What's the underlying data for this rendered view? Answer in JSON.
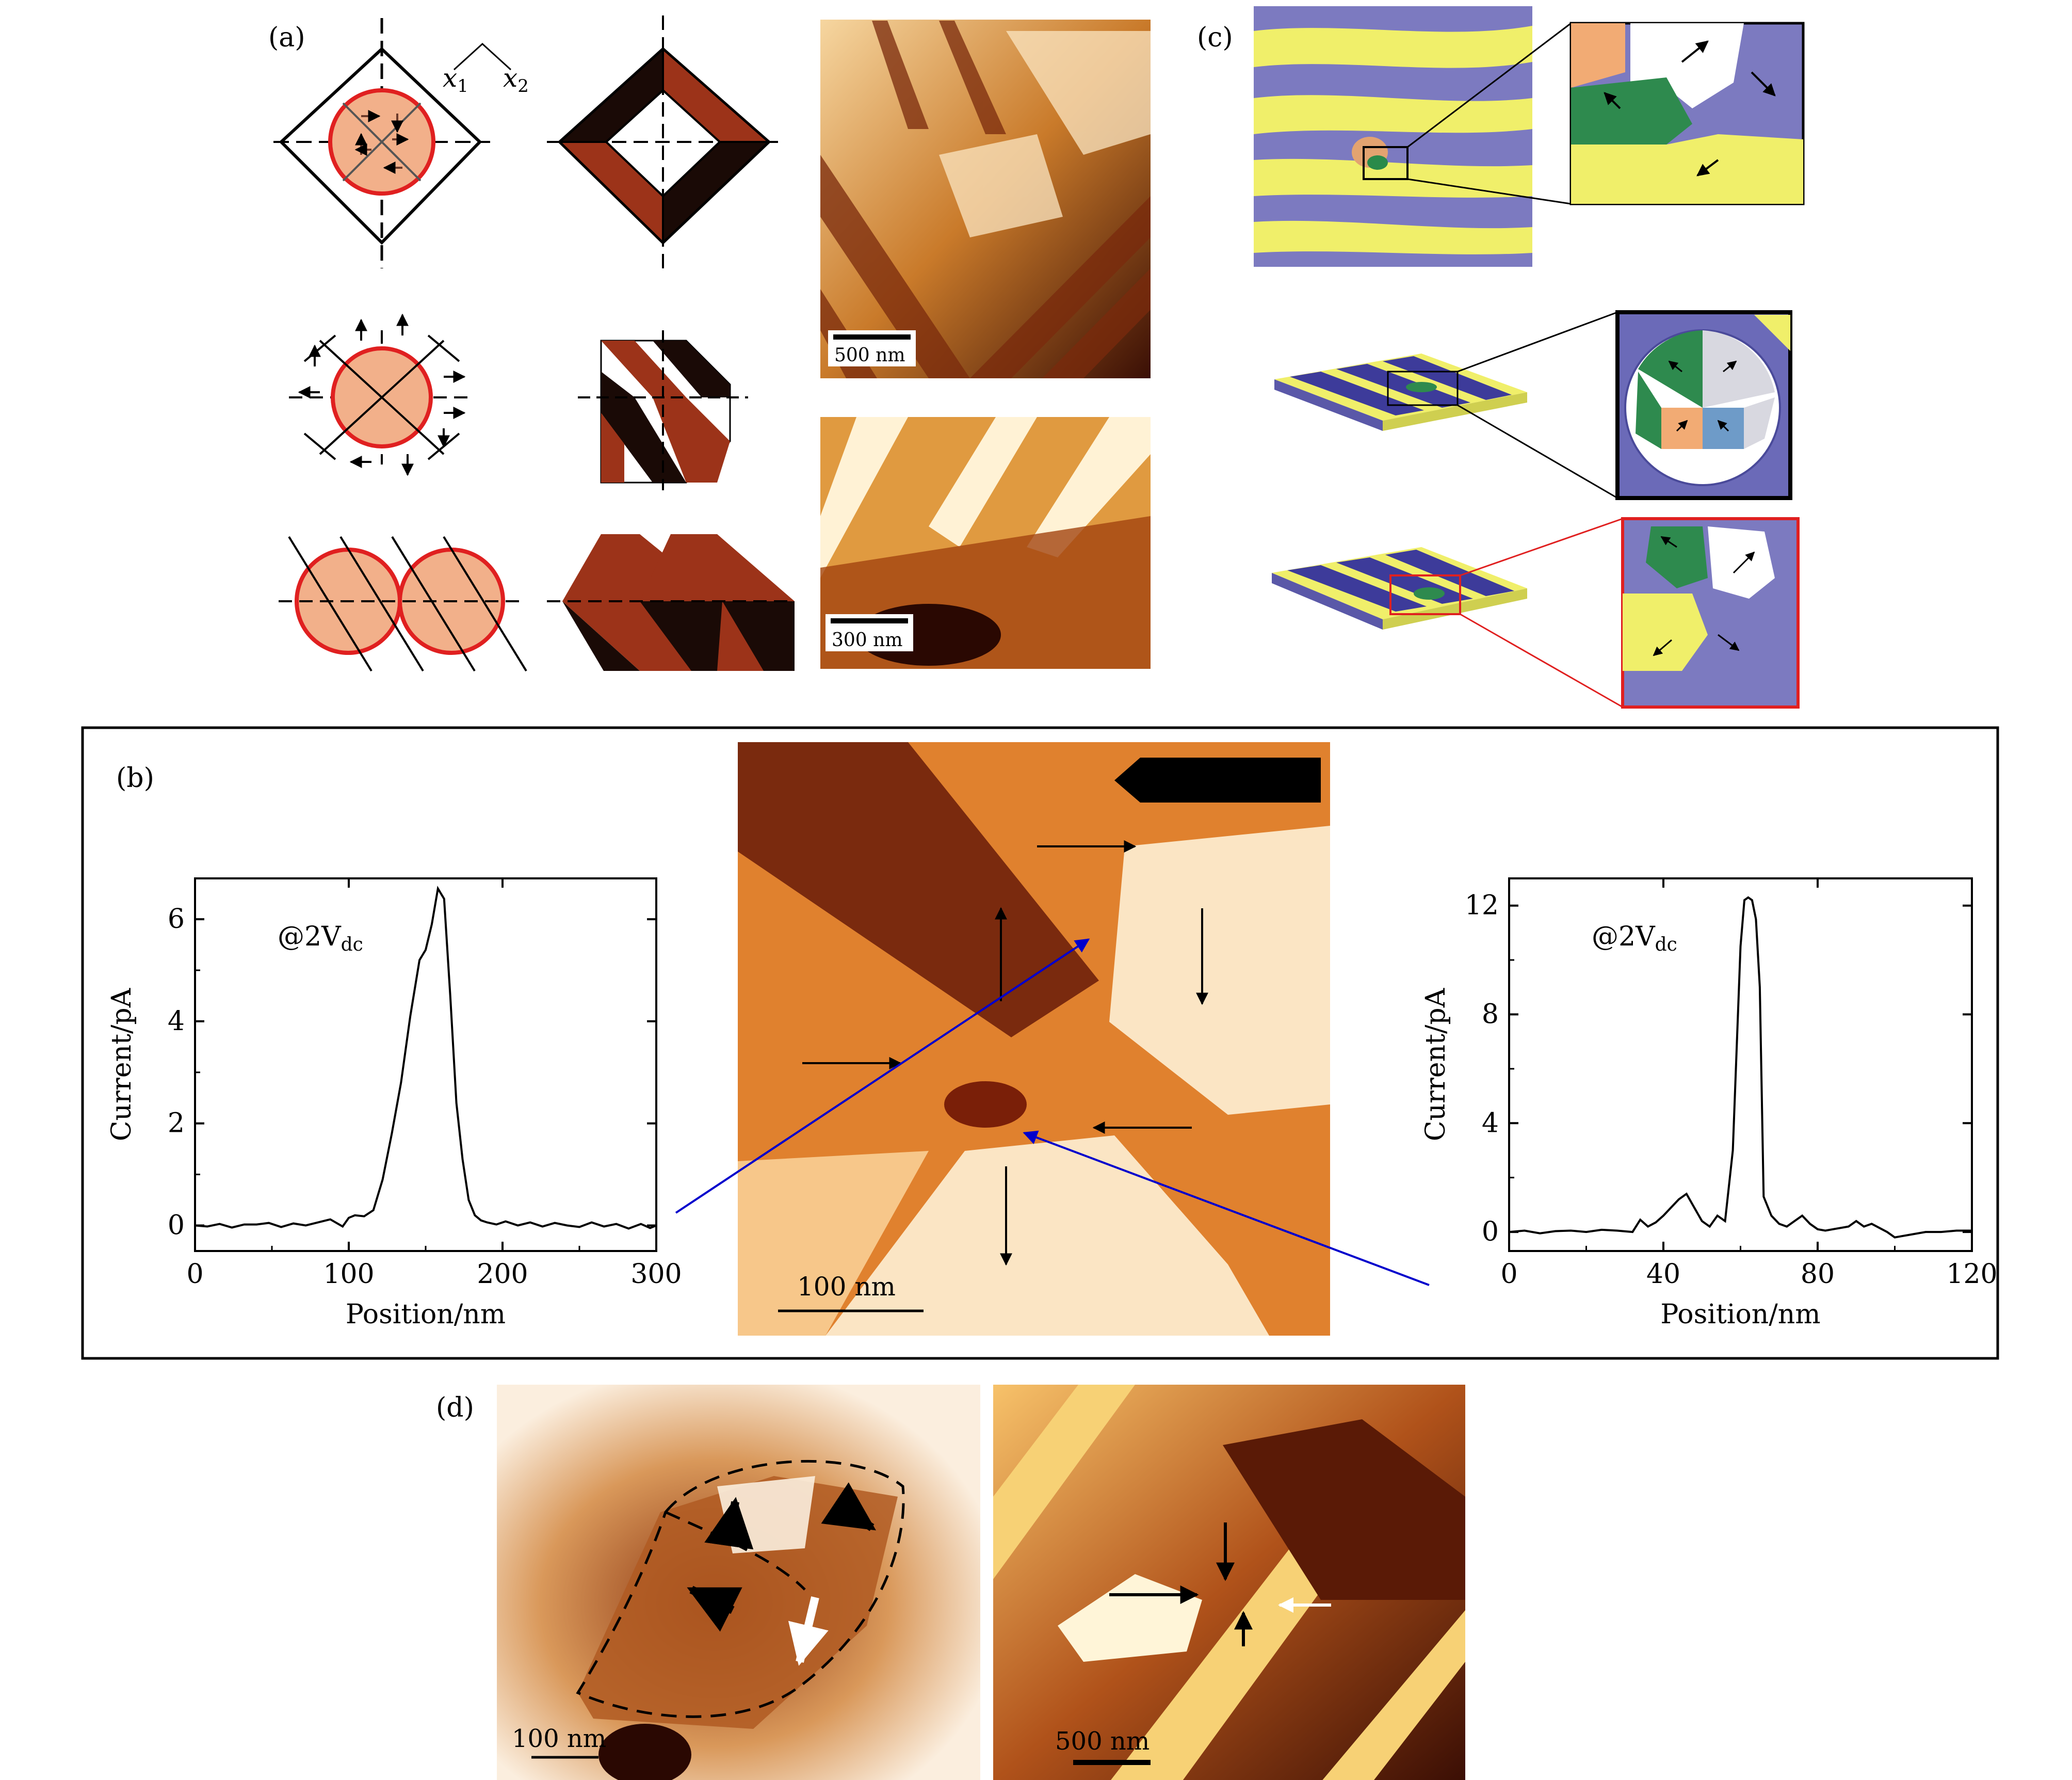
{
  "panels": {
    "a": {
      "label": "(a)"
    },
    "b": {
      "label": "(b)"
    },
    "c": {
      "label": "(c)"
    },
    "d": {
      "label": "(d)"
    }
  },
  "panel_a": {
    "axis_x1": "x",
    "axis_x1_sub": "1",
    "axis_x2": "x",
    "axis_x2_sub": "2",
    "scalebar_top": "500 nm",
    "scalebar_bottom": "300 nm"
  },
  "panel_b": {
    "scalebar": "100 nm",
    "colors": {
      "line": "#000000",
      "connector": "#0000cc"
    }
  },
  "panel_d": {
    "scalebar_left": "100 nm",
    "scalebar_right": "500 nm"
  },
  "chart_data": [
    {
      "type": "line",
      "annotation": "@2V",
      "annotation_sub": "dc",
      "xlabel": "Position/nm",
      "ylabel": "Current/pA",
      "xlim": [
        0,
        300
      ],
      "ylim": [
        -0.5,
        6.8
      ],
      "xticks": [
        0,
        100,
        200,
        300
      ],
      "yticks": [
        0,
        2,
        4,
        6
      ],
      "x": [
        0,
        8,
        16,
        24,
        32,
        40,
        48,
        56,
        64,
        72,
        80,
        88,
        96,
        100,
        104,
        110,
        116,
        122,
        128,
        134,
        140,
        146,
        150,
        154,
        158,
        162,
        166,
        170,
        174,
        178,
        182,
        186,
        190,
        196,
        202,
        210,
        218,
        226,
        234,
        242,
        250,
        258,
        266,
        274,
        282,
        290,
        296,
        300
      ],
      "y": [
        0,
        -0.02,
        0.03,
        -0.04,
        0.02,
        0.02,
        0.05,
        -0.03,
        0.04,
        0.0,
        0.06,
        0.12,
        -0.02,
        0.15,
        0.2,
        0.18,
        0.3,
        0.9,
        1.8,
        2.8,
        4.1,
        5.2,
        5.4,
        5.9,
        6.6,
        6.4,
        4.5,
        2.4,
        1.3,
        0.5,
        0.2,
        0.1,
        0.06,
        0.02,
        0.08,
        0.0,
        0.06,
        -0.02,
        0.05,
        0.0,
        -0.03,
        0.06,
        -0.02,
        0.03,
        -0.06,
        0.03,
        -0.05,
        0.0
      ]
    },
    {
      "type": "line",
      "annotation": "@2V",
      "annotation_sub": "dc",
      "xlabel": "Position/nm",
      "ylabel": "Current/pA",
      "xlim": [
        0,
        120
      ],
      "ylim": [
        -0.7,
        13.0
      ],
      "xticks": [
        0,
        40,
        80,
        120
      ],
      "yticks": [
        0,
        4,
        8,
        12
      ],
      "x": [
        0,
        4,
        8,
        12,
        16,
        20,
        24,
        28,
        32,
        34,
        36,
        38,
        40,
        42,
        44,
        46,
        48,
        50,
        52,
        54,
        56,
        58,
        60,
        61,
        62,
        63,
        64,
        65,
        66,
        68,
        70,
        72,
        74,
        76,
        78,
        80,
        82,
        84,
        88,
        90,
        92,
        94,
        98,
        100,
        104,
        108,
        112,
        116,
        120
      ],
      "y": [
        0,
        0.05,
        -0.05,
        0.03,
        0.05,
        0.0,
        0.08,
        0.05,
        0.0,
        0.45,
        0.2,
        0.35,
        0.6,
        0.9,
        1.2,
        1.4,
        0.9,
        0.4,
        0.2,
        0.6,
        0.4,
        3.0,
        10.5,
        12.2,
        12.3,
        12.2,
        11.5,
        9.0,
        1.3,
        0.6,
        0.3,
        0.2,
        0.4,
        0.6,
        0.3,
        0.1,
        0.05,
        0.1,
        0.2,
        0.4,
        0.2,
        0.3,
        0.0,
        -0.2,
        -0.1,
        0.0,
        0.0,
        0.05,
        0.05
      ]
    }
  ]
}
